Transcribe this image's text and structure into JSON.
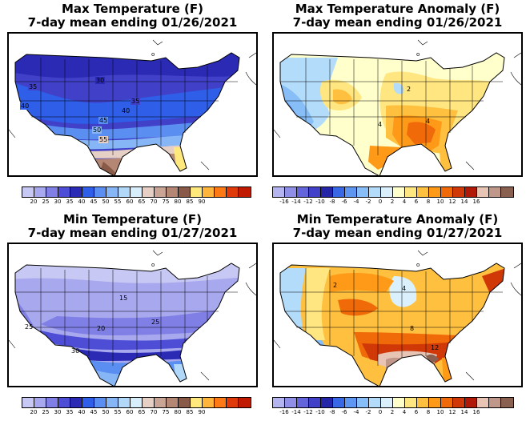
{
  "panels": [
    {
      "title_line1": "Max Temperature (F)",
      "title_line2": "7-day mean ending 01/26/2021",
      "palette": [
        "#c8c8f5",
        "#a8a8ef",
        "#7f7fe6",
        "#4d4dd6",
        "#2a2ab5",
        "#2f5ee8",
        "#5a8ef0",
        "#87b6f6",
        "#b1d7f9",
        "#d9eefb",
        "#e6cfc5",
        "#c9a595",
        "#b48774",
        "#8a5a48",
        "#ffe97d",
        "#ffb43c",
        "#ff7a14",
        "#e03a0a",
        "#c01a00"
      ],
      "colorbar_labels": [
        "20",
        "25",
        "30",
        "35",
        "40",
        "45",
        "50",
        "55",
        "60",
        "65",
        "70",
        "75",
        "80",
        "85",
        "90"
      ],
      "contour_labels": [
        "30",
        "35",
        "35",
        "40",
        "40",
        "45",
        "50",
        "55"
      ]
    },
    {
      "title_line1": "Max Temperature Anomaly (F)",
      "title_line2": "7-day mean ending 01/26/2021",
      "palette": [
        "#b4b4f0",
        "#8f8fe8",
        "#6464db",
        "#4040c8",
        "#2525a8",
        "#3868e6",
        "#5e96f2",
        "#87bef7",
        "#b2dcfa",
        "#daf0fc",
        "#ffffcc",
        "#ffe680",
        "#ffc040",
        "#ff9a18",
        "#f06a0a",
        "#d03808",
        "#b01808",
        "#e8c4b4",
        "#c0988a",
        "#8a6050"
      ],
      "colorbar_labels": [
        "-16",
        "-14",
        "-12",
        "-10",
        "-8",
        "-6",
        "-4",
        "-2",
        "0",
        "2",
        "4",
        "6",
        "8",
        "10",
        "12",
        "14",
        "16"
      ],
      "contour_labels": [
        "2",
        "4",
        "4"
      ]
    },
    {
      "title_line1": "Min Temperature (F)",
      "title_line2": "7-day mean ending 01/27/2021",
      "palette": [
        "#c8c8f5",
        "#a8a8ef",
        "#7f7fe6",
        "#4d4dd6",
        "#2a2ab5",
        "#2f5ee8",
        "#5a8ef0",
        "#87b6f6",
        "#b1d7f9",
        "#d9eefb",
        "#e6cfc5",
        "#c9a595",
        "#b48774",
        "#8a5a48",
        "#ffe97d",
        "#ffb43c",
        "#ff7a14",
        "#e03a0a",
        "#c01a00"
      ],
      "colorbar_labels": [
        "20",
        "25",
        "30",
        "35",
        "40",
        "45",
        "50",
        "55",
        "60",
        "65",
        "70",
        "75",
        "80",
        "85",
        "90"
      ],
      "contour_labels": [
        "15",
        "25",
        "20",
        "25",
        "30"
      ]
    },
    {
      "title_line1": "Min Temperature Anomaly (F)",
      "title_line2": "7-day mean ending 01/27/2021",
      "palette": [
        "#b4b4f0",
        "#8f8fe8",
        "#6464db",
        "#4040c8",
        "#2525a8",
        "#3868e6",
        "#5e96f2",
        "#87bef7",
        "#b2dcfa",
        "#daf0fc",
        "#ffffcc",
        "#ffe680",
        "#ffc040",
        "#ff9a18",
        "#f06a0a",
        "#d03808",
        "#b01808",
        "#e8c4b4",
        "#c0988a",
        "#8a6050"
      ],
      "colorbar_labels": [
        "-16",
        "-14",
        "-12",
        "-10",
        "-8",
        "-6",
        "-4",
        "-2",
        "0",
        "2",
        "4",
        "6",
        "8",
        "10",
        "12",
        "14",
        "16"
      ],
      "contour_labels": [
        "2",
        "4",
        "8",
        "12"
      ]
    }
  ]
}
